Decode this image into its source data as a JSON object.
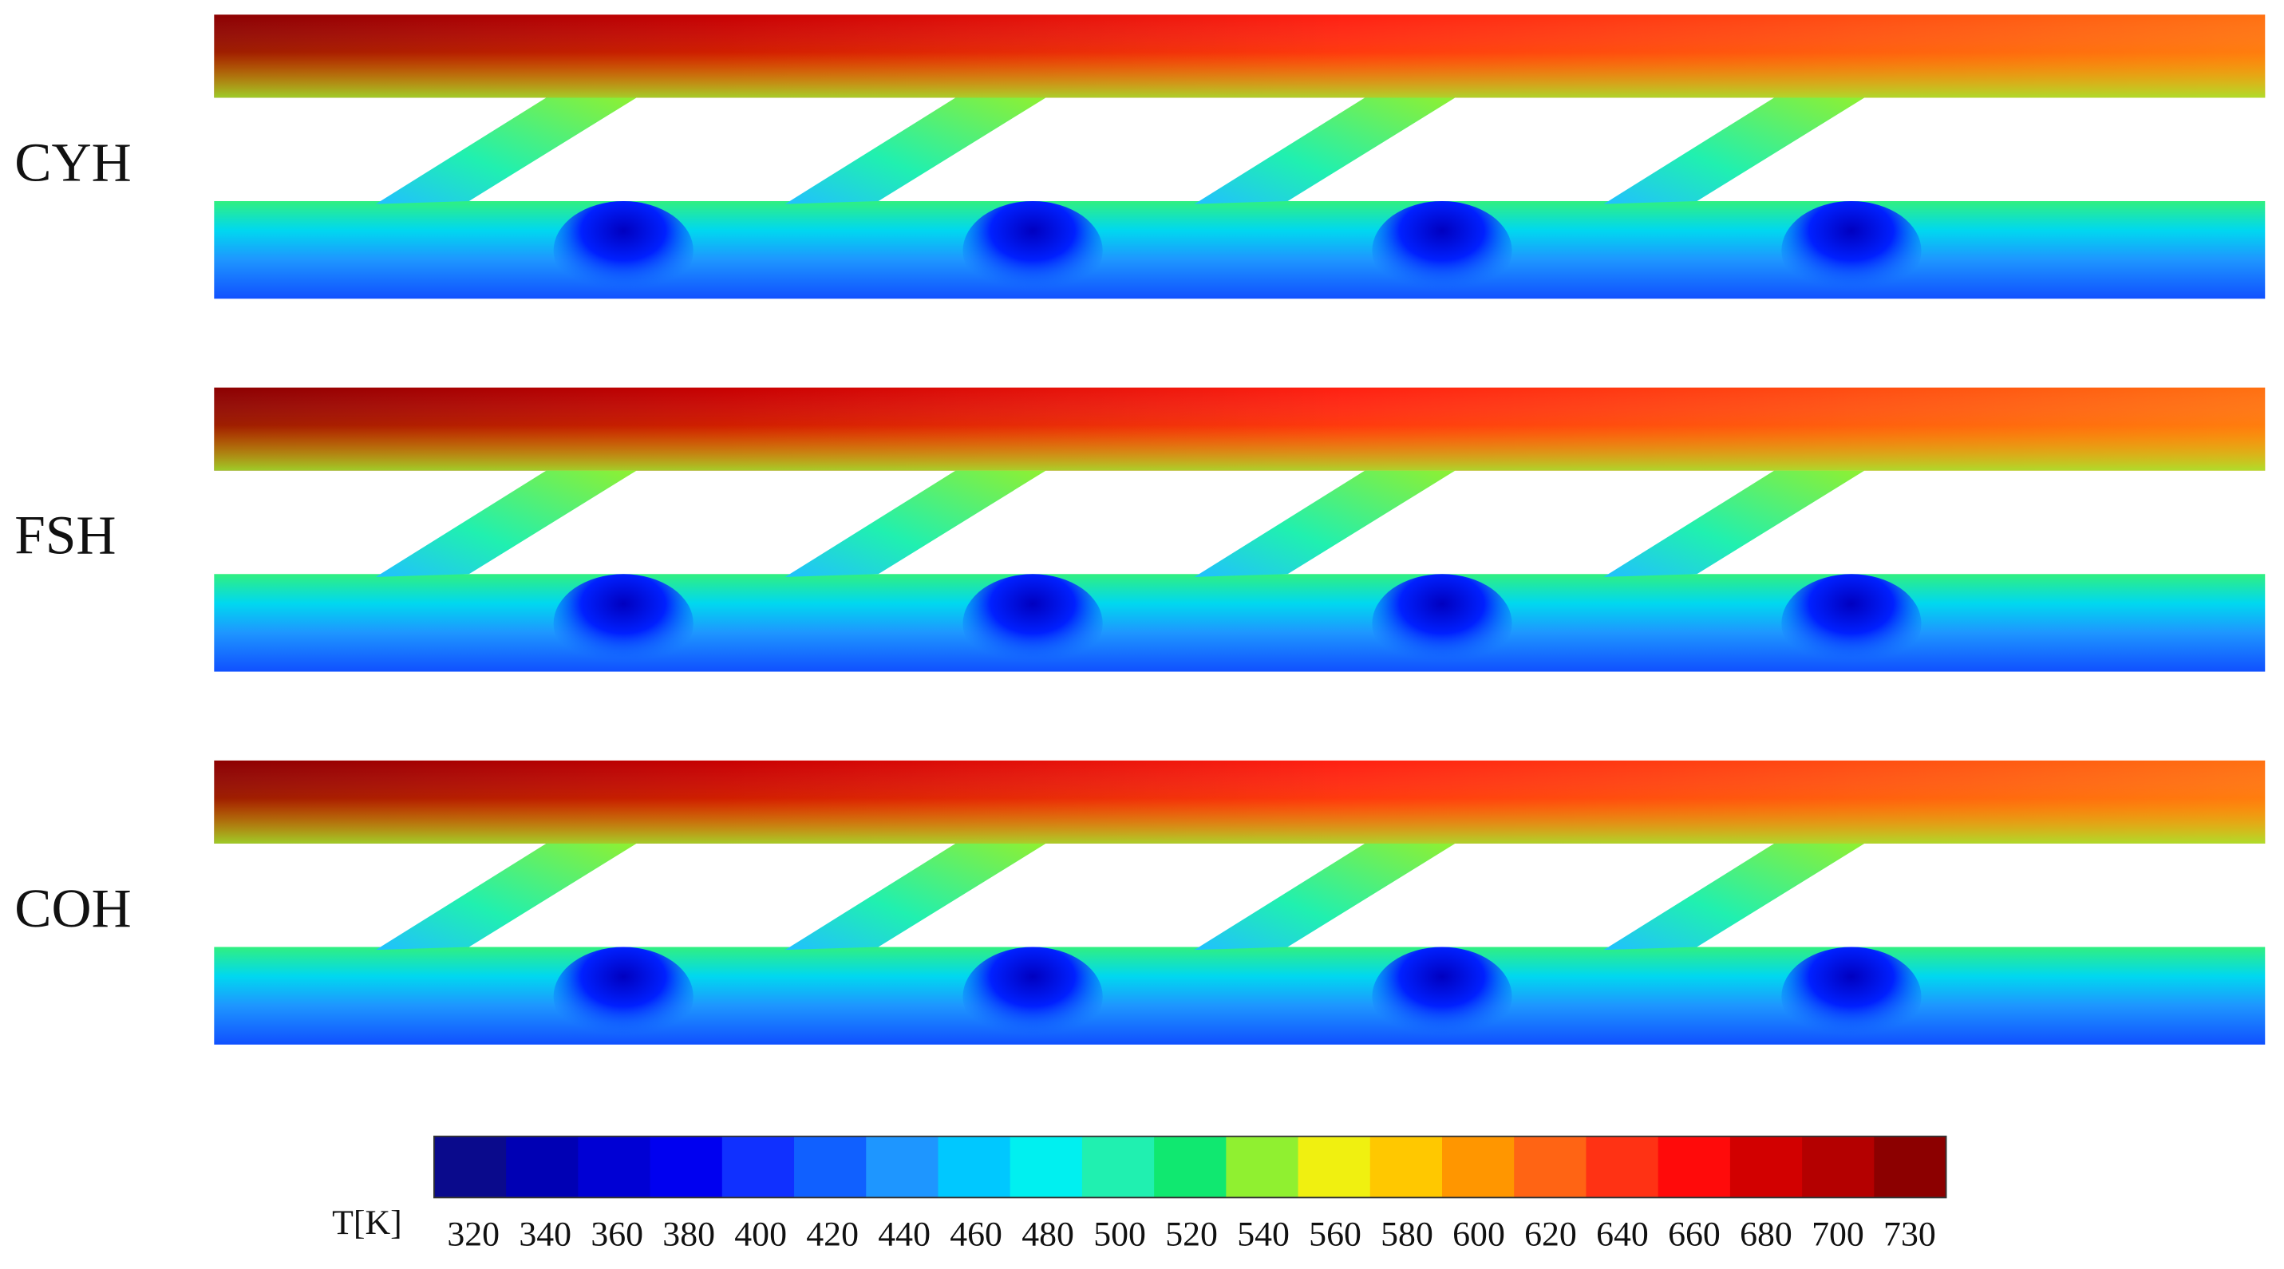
{
  "panels": [
    {
      "label": "CYH"
    },
    {
      "label": "FSH"
    },
    {
      "label": "COH"
    }
  ],
  "colorbar": {
    "label": "T[K]",
    "ticks": [
      320,
      340,
      360,
      380,
      400,
      420,
      440,
      460,
      480,
      500,
      520,
      540,
      560,
      580,
      600,
      620,
      640,
      660,
      680,
      700,
      730
    ],
    "colors": [
      "#0a0a8c",
      "#0000b4",
      "#0000d4",
      "#0000f0",
      "#1030ff",
      "#1060ff",
      "#1e96ff",
      "#00c8ff",
      "#00f0f0",
      "#20f0b0",
      "#10e870",
      "#90f030",
      "#f0f010",
      "#ffc800",
      "#ff9600",
      "#ff6414",
      "#ff3214",
      "#ff0a0a",
      "#d20000",
      "#b40000",
      "#8c0000"
    ]
  }
}
